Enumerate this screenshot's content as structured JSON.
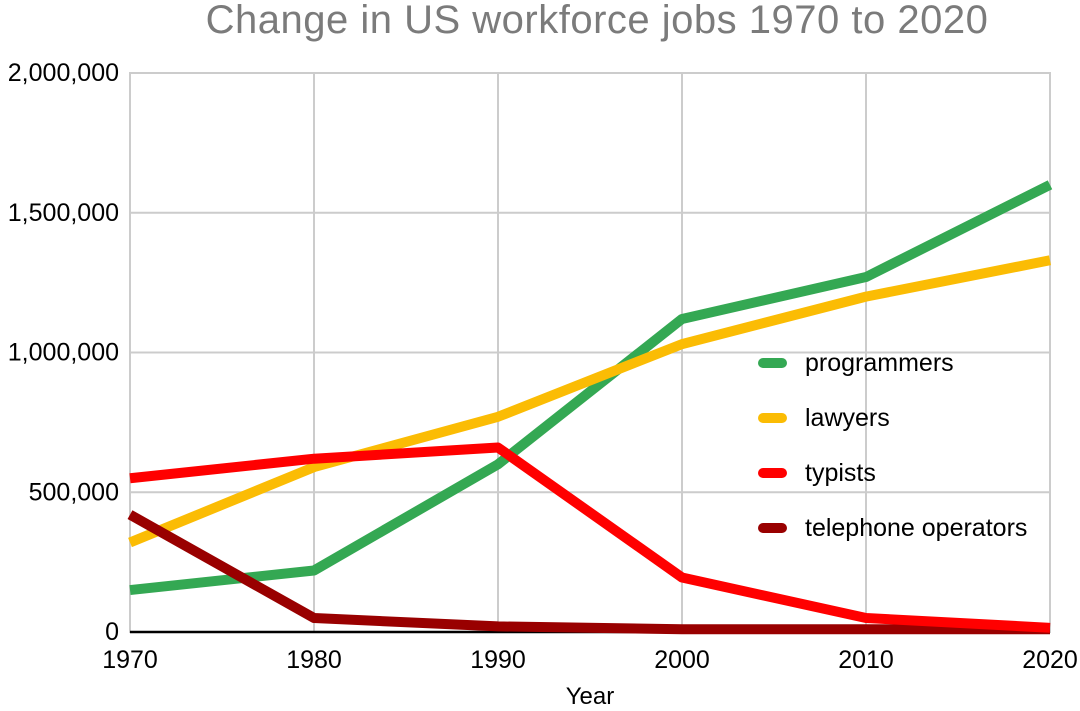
{
  "chart_data": {
    "type": "line",
    "title": "Change in US workforce jobs 1970 to 2020",
    "xlabel": "Year",
    "ylabel": "",
    "categories": [
      1970,
      1980,
      1990,
      2000,
      2010,
      2020
    ],
    "x_tick_labels": [
      "1970",
      "1980",
      "1990",
      "2000",
      "2010",
      "2020"
    ],
    "y_ticks": [
      0,
      500000,
      1000000,
      1500000,
      2000000
    ],
    "y_tick_labels": [
      "0",
      "500,000",
      "1,000,000",
      "1,500,000",
      "2,000,000"
    ],
    "xlim": [
      1970,
      2020
    ],
    "ylim": [
      0,
      2000000
    ],
    "grid": true,
    "legend_position": "inside-right",
    "series": [
      {
        "name": "programmers",
        "color": "#34a853",
        "values": [
          150000,
          220000,
          600000,
          1120000,
          1270000,
          1600000
        ]
      },
      {
        "name": "lawyers",
        "color": "#fbbc04",
        "values": [
          320000,
          590000,
          770000,
          1030000,
          1200000,
          1330000
        ]
      },
      {
        "name": "typists",
        "color": "#ff0000",
        "values": [
          550000,
          620000,
          660000,
          195000,
          50000,
          15000
        ]
      },
      {
        "name": "telephone operators",
        "color": "#990000",
        "values": [
          420000,
          50000,
          20000,
          10000,
          10000,
          10000
        ]
      }
    ],
    "draw_order": [
      0,
      1,
      3,
      2
    ]
  },
  "colors": {
    "title_text": "#7b7b7b",
    "axis_text": "#000000",
    "gridline": "#cccccc",
    "axis_line": "#000000",
    "background": "#ffffff"
  }
}
